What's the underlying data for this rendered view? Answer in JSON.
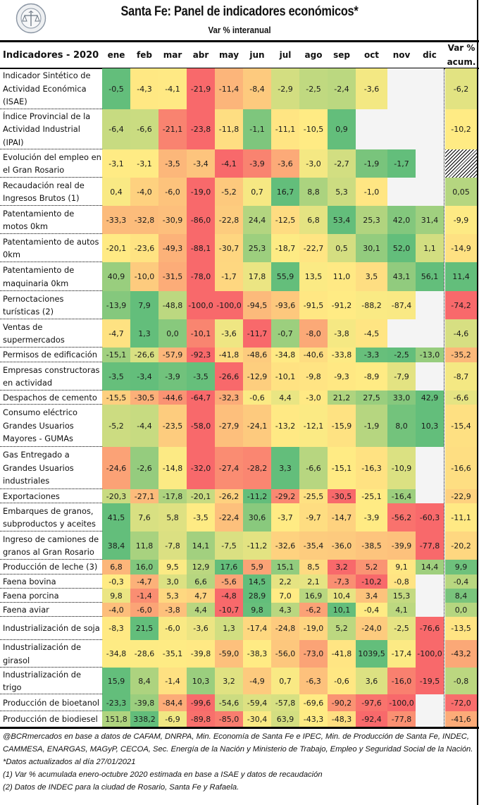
{
  "header": {
    "logo_icon": "bolsa-de-comercio-seal-icon",
    "title": "Santa Fe: Panel de indicadores económicos*",
    "subtitle": "Var % interanual"
  },
  "table": {
    "corner_label": "Indicadores - 2020",
    "months": [
      "ene",
      "feb",
      "mar",
      "abr",
      "may",
      "jun",
      "jul",
      "ago",
      "sep",
      "oct",
      "nov",
      "dic"
    ],
    "acum_label_line1": "Var %",
    "acum_label_line2": "acum.",
    "colors": {
      "red": "#F8696B",
      "yellow": "#FFEB84",
      "green": "#63BE7B",
      "blank": "#F4F4F4"
    },
    "rows": [
      {
        "label": "Indicador Sintético de Actividad Económica (ISAE)",
        "values": [
          "-0,5",
          "-4,3",
          "-4,1",
          "-21,9",
          "-11,4",
          "-8,4",
          "-2,9",
          "-2,5",
          "-2,4",
          "-3,6",
          null,
          null
        ],
        "acum": "-6,2"
      },
      {
        "label": "Índice Provincial de la Actividad Industrial (IPAI)",
        "values": [
          "-6,4",
          "-6,6",
          "-21,1",
          "-23,8",
          "-11,8",
          "-1,1",
          "-11,1",
          "-10,5",
          "0,9",
          null,
          null,
          null
        ],
        "acum": "-10,2"
      },
      {
        "label": "Evolución del empleo en el Gran Rosario",
        "values": [
          "-3,1",
          "-3,1",
          "-3,5",
          "-3,4",
          "-4,1",
          "-3,9",
          "-3,6",
          "-3,0",
          "-2,7",
          "-1,9",
          "-1,7",
          null
        ],
        "acum": null,
        "acum_pattern": "hatched"
      },
      {
        "label": "Recaudación real de Ingresos Brutos (1)",
        "values": [
          "0,4",
          "-4,0",
          "-6,0",
          "-19,0",
          "-5,2",
          "0,7",
          "16,7",
          "8,8",
          "5,3",
          "-1,0",
          null,
          null
        ],
        "acum": "0,05"
      },
      {
        "label": "Patentamiento de motos 0km",
        "values": [
          "-33,3",
          "-32,8",
          "-30,9",
          "-86,0",
          "-22,8",
          "24,4",
          "-12,5",
          "6,8",
          "53,4",
          "25,3",
          "42,0",
          "31,4"
        ],
        "acum": "-9,9"
      },
      {
        "label": "Patentamiento de autos 0km",
        "values": [
          "-20,1",
          "-23,6",
          "-49,3",
          "-88,1",
          "-30,7",
          "25,3",
          "-18,7",
          "-22,7",
          "0,5",
          "30,1",
          "52,0",
          "1,1"
        ],
        "acum": "-14,9"
      },
      {
        "label": "Patentamiento de maquinaria 0km",
        "values": [
          "40,9",
          "-10,0",
          "-31,5",
          "-78,0",
          "-1,7",
          "17,8",
          "55,9",
          "13,5",
          "11,0",
          "3,5",
          "43,1",
          "56,1"
        ],
        "acum": "11,4"
      },
      {
        "label": "Pernoctaciones turísticas (2)",
        "values": [
          "-13,9",
          "7,9",
          "-48,8",
          "-100,0",
          "-100,0",
          "-94,5",
          "-93,6",
          "-91,5",
          "-91,2",
          "-88,2",
          "-87,4",
          null
        ],
        "acum": "-74,2"
      },
      {
        "label": "Ventas de supermercados",
        "values": [
          "-4,7",
          "1,3",
          "0,0",
          "-10,1",
          "-3,6",
          "-11,7",
          "-0,7",
          "-8,0",
          "-3,8",
          "-4,5",
          null,
          null
        ],
        "acum": "-4,6"
      },
      {
        "label": "Permisos de edificación",
        "values": [
          "-15,1",
          "-26,6",
          "-57,9",
          "-92,3",
          "-41,8",
          "-48,6",
          "-34,8",
          "-40,6",
          "-33,8",
          "-3,3",
          "-2,5",
          "-13,0"
        ],
        "acum": "-35,2"
      },
      {
        "label": "Empresas constructoras en actividad",
        "values": [
          "-3,5",
          "-3,4",
          "-3,9",
          "-3,5",
          "-26,6",
          "-12,9",
          "-10,1",
          "-9,8",
          "-9,3",
          "-8,9",
          "-7,9",
          null
        ],
        "acum": "-8,7"
      },
      {
        "label": "Despachos de cemento",
        "values": [
          "-15,5",
          "-30,5",
          "-44,6",
          "-64,7",
          "-32,3",
          "-0,6",
          "4,4",
          "-3,0",
          "21,2",
          "27,5",
          "33,0",
          "42,9"
        ],
        "acum": "-6,6"
      },
      {
        "label": "Consumo eléctrico Grandes Usuarios Mayores - GUMAs",
        "values": [
          "-5,2",
          "-4,4",
          "-23,5",
          "-58,0",
          "-27,9",
          "-24,1",
          "-13,2",
          "-12,1",
          "-15,9",
          "-1,9",
          "8,0",
          "10,3"
        ],
        "acum": "-15,4"
      },
      {
        "label": "Gas Entregado a Grandes Usuarios industriales",
        "values": [
          "-24,6",
          "-2,6",
          "-14,8",
          "-32,0",
          "-27,4",
          "-28,2",
          "3,3",
          "-6,6",
          "-15,1",
          "-16,3",
          "-10,9",
          null
        ],
        "acum": "-16,6"
      },
      {
        "label": "Exportaciones",
        "values": [
          "-20,3",
          "-27,1",
          "-17,8",
          "-20,1",
          "-26,2",
          "-11,2",
          "-29,2",
          "-25,5",
          "-30,5",
          "-25,1",
          "-16,4",
          null
        ],
        "acum": "-22,9"
      },
      {
        "label": "Embarques de granos, subproductos y aceites",
        "values": [
          "41,5",
          "7,6",
          "5,8",
          "-3,5",
          "-22,4",
          "30,6",
          "-3,7",
          "-9,7",
          "-14,7",
          "-3,9",
          "-56,2",
          "-60,3"
        ],
        "acum": "-11,1"
      },
      {
        "label": "Ingreso de camiones de granos al Gran Rosario",
        "values": [
          "38,4",
          "11,8",
          "-7,8",
          "14,1",
          "-7,5",
          "-11,2",
          "-32,6",
          "-35,4",
          "-36,0",
          "-38,5",
          "-39,9",
          "-77,8"
        ],
        "acum": "-20,2"
      },
      {
        "label": "Producción de leche (3)",
        "values": [
          "6,8",
          "16,0",
          "9,5",
          "12,9",
          "17,6",
          "5,9",
          "15,1",
          "8,5",
          "3,2",
          "5,2",
          "9,1",
          "14,4"
        ],
        "acum": "9,9"
      },
      {
        "label": "Faena bovina",
        "values": [
          "-0,3",
          "-4,7",
          "3,0",
          "6,6",
          "-5,6",
          "14,5",
          "2,2",
          "2,1",
          "-7,3",
          "-10,2",
          "-0,8",
          null
        ],
        "acum": "-0,4"
      },
      {
        "label": "Faena porcina",
        "values": [
          "9,8",
          "-1,4",
          "5,3",
          "4,7",
          "-4,8",
          "28,9",
          "7,0",
          "16,9",
          "10,4",
          "3,4",
          "15,3",
          null
        ],
        "acum": "8,4"
      },
      {
        "label": "Faena aviar",
        "values": [
          "-4,0",
          "-6,0",
          "-3,8",
          "4,4",
          "-10,7",
          "9,8",
          "4,3",
          "-6,2",
          "10,1",
          "-0,4",
          "4,1",
          null
        ],
        "acum": "0,0"
      },
      {
        "label": "Industrialización de soja",
        "values": [
          "-8,3",
          "21,5",
          "-6,0",
          "-3,6",
          "1,3",
          "-17,4",
          "-24,8",
          "-19,0",
          "5,2",
          "-24,0",
          "-2,5",
          "-76,6"
        ],
        "acum": "-13,5"
      },
      {
        "label": "Industrialización de girasol",
        "values": [
          "-34,8",
          "-28,6",
          "-35,1",
          "-39,8",
          "-59,0",
          "-38,3",
          "-56,0",
          "-73,0",
          "-41,8",
          "1039,5",
          "-17,4",
          "-100,0"
        ],
        "acum": "-43,2"
      },
      {
        "label": "Industrialización de trigo",
        "values": [
          "15,9",
          "8,4",
          "-1,4",
          "10,3",
          "3,2",
          "-4,9",
          "0,7",
          "-6,3",
          "-0,6",
          "3,6",
          "-16,0",
          "-19,5"
        ],
        "acum": "-0,8"
      },
      {
        "label": "Producción de bioetanol",
        "values": [
          "-23,3",
          "-39,8",
          "-84,4",
          "-99,6",
          "-54,6",
          "-59,4",
          "-57,8",
          "-69,6",
          "-90,2",
          "-97,6",
          "-100,0",
          null
        ],
        "acum": "-72,0"
      },
      {
        "label": "Producción de biodiesel",
        "values": [
          "151,8",
          "338,2",
          "-6,9",
          "-89,8",
          "-85,0",
          "-30,4",
          "63,9",
          "-43,3",
          "-48,3",
          "-92,4",
          "-77,8",
          null
        ],
        "acum": "-41,6"
      }
    ]
  },
  "footnotes": {
    "source": "@BCRmercados en base a datos de CAFAM, DNRPA, Min. Economía de Santa Fe e IPEC, Min. de Producción de Santa Fe, INDEC, CAMMESA, ENARGAS, MAGyP, CECOA, Sec. Energía de la Nación y Ministerio de Trabajo, Empleo y Seguridad Social de la Nación.",
    "updated": "*Datos actualizados al día 27/01/2021",
    "note1": "(1) Var % acumulada enero-octubre 2020 estimada en base a ISAE y datos de recaudación",
    "note2": "(2) Datos de INDEC para la ciudad de Rosario, Santa Fe y Rafaela."
  }
}
